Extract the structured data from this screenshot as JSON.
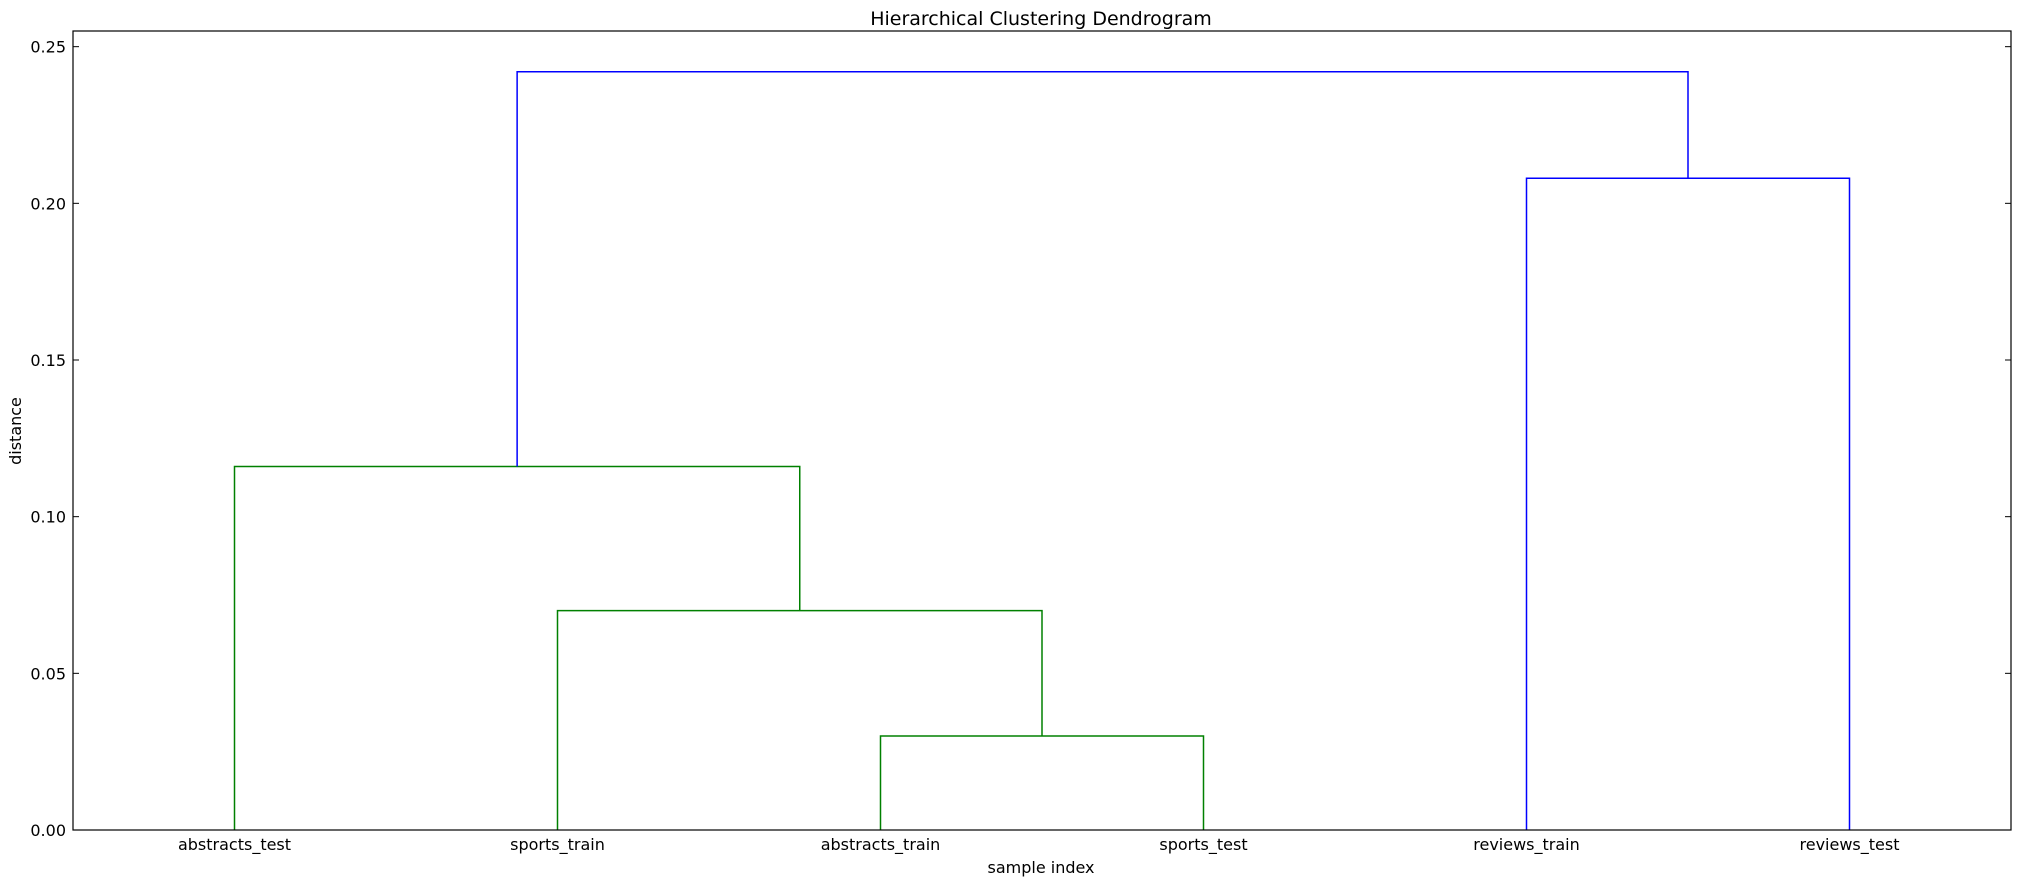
{
  "chart_data": {
    "type": "dendrogram",
    "title": "Hierarchical Clustering Dendrogram",
    "xlabel": "sample index",
    "ylabel": "distance",
    "ylim": [
      0,
      0.255
    ],
    "yticks": [
      "0.00",
      "0.05",
      "0.10",
      "0.15",
      "0.20",
      "0.25"
    ],
    "ytick_values": [
      0.0,
      0.05,
      0.1,
      0.15,
      0.2,
      0.25
    ],
    "leaves": [
      "abstracts_test",
      "sports_train",
      "abstracts_train",
      "sports_test",
      "reviews_train",
      "reviews_test"
    ],
    "colors": {
      "green": "#008000",
      "blue": "#0000ff",
      "axis": "#000000"
    },
    "links": [
      {
        "left": 2,
        "right": 3,
        "height": 0.03,
        "color": "green"
      },
      {
        "left": 1,
        "right": "L0",
        "height": 0.07,
        "color": "green"
      },
      {
        "left": 0,
        "right": "L1",
        "height": 0.116,
        "color": "green"
      },
      {
        "left": 4,
        "right": 5,
        "height": 0.208,
        "color": "blue"
      },
      {
        "left": "L2",
        "right": "L3",
        "height": 0.242,
        "color": "blue"
      }
    ],
    "grid": false,
    "legend": "none"
  }
}
